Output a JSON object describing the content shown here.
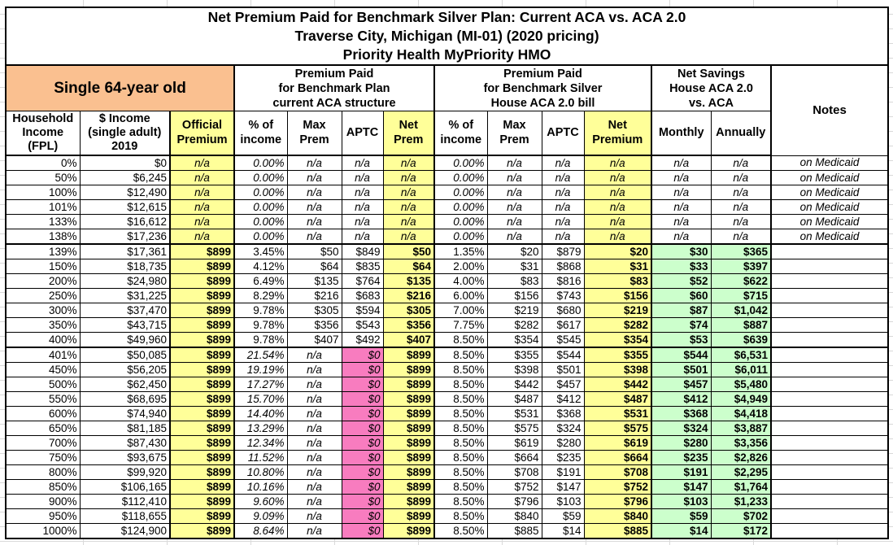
{
  "sheet": {
    "title_lines": [
      "Net Premium Paid for Benchmark Silver Plan: Current ACA vs. ACA 2.0",
      "Traverse City, Michigan (MI-01) (2020 pricing)",
      "Priority Health MyPriority HMO"
    ],
    "groups": {
      "subject": "Single 64-year old",
      "aca": "Premium Paid\nfor Benchmark Plan\ncurrent ACA structure",
      "house": "Premium Paid\nfor Benchmark Silver\nHouse ACA 2.0 bill",
      "savings": "Net Savings\nHouse ACA 2.0\nvs. ACA",
      "notes": "Notes"
    },
    "columns": [
      "Household\nIncome\n(FPL)",
      "$ Income\n(single adult)\n2019",
      "Official\nPremium",
      "% of\nincome",
      "Max\nPrem",
      "APTC",
      "Net\nPrem",
      "% of\nincome",
      "Max\nPrem",
      "APTC",
      "Net\nPremium",
      "Monthly",
      "Annually"
    ],
    "colors": {
      "subject_header": "#FAC090",
      "highlight": "#FFFF99",
      "savings": "#CCFFCC",
      "no_subsidy": "#F87CBF"
    },
    "rows": [
      [
        "0%",
        "$0",
        "n/a",
        "0.00%",
        "n/a",
        "n/a",
        "n/a",
        "0.00%",
        "n/a",
        "n/a",
        "n/a",
        "n/a",
        "n/a",
        "on Medicaid"
      ],
      [
        "50%",
        "$6,245",
        "n/a",
        "0.00%",
        "n/a",
        "n/a",
        "n/a",
        "0.00%",
        "n/a",
        "n/a",
        "n/a",
        "n/a",
        "n/a",
        "on Medicaid"
      ],
      [
        "100%",
        "$12,490",
        "n/a",
        "0.00%",
        "n/a",
        "n/a",
        "n/a",
        "0.00%",
        "n/a",
        "n/a",
        "n/a",
        "n/a",
        "n/a",
        "on Medicaid"
      ],
      [
        "101%",
        "$12,615",
        "n/a",
        "0.00%",
        "n/a",
        "n/a",
        "n/a",
        "0.00%",
        "n/a",
        "n/a",
        "n/a",
        "n/a",
        "n/a",
        "on Medicaid"
      ],
      [
        "133%",
        "$16,612",
        "n/a",
        "0.00%",
        "n/a",
        "n/a",
        "n/a",
        "0.00%",
        "n/a",
        "n/a",
        "n/a",
        "n/a",
        "n/a",
        "on Medicaid"
      ],
      [
        "138%",
        "$17,236",
        "n/a",
        "0.00%",
        "n/a",
        "n/a",
        "n/a",
        "0.00%",
        "n/a",
        "n/a",
        "n/a",
        "n/a",
        "n/a",
        "on Medicaid"
      ],
      [
        "139%",
        "$17,361",
        "$899",
        "3.45%",
        "$50",
        "$849",
        "$50",
        "1.35%",
        "$20",
        "$879",
        "$20",
        "$30",
        "$365",
        ""
      ],
      [
        "150%",
        "$18,735",
        "$899",
        "4.12%",
        "$64",
        "$835",
        "$64",
        "2.00%",
        "$31",
        "$868",
        "$31",
        "$33",
        "$397",
        ""
      ],
      [
        "200%",
        "$24,980",
        "$899",
        "6.49%",
        "$135",
        "$764",
        "$135",
        "4.00%",
        "$83",
        "$816",
        "$83",
        "$52",
        "$622",
        ""
      ],
      [
        "250%",
        "$31,225",
        "$899",
        "8.29%",
        "$216",
        "$683",
        "$216",
        "6.00%",
        "$156",
        "$743",
        "$156",
        "$60",
        "$715",
        ""
      ],
      [
        "300%",
        "$37,470",
        "$899",
        "9.78%",
        "$305",
        "$594",
        "$305",
        "7.00%",
        "$219",
        "$680",
        "$219",
        "$87",
        "$1,042",
        ""
      ],
      [
        "350%",
        "$43,715",
        "$899",
        "9.78%",
        "$356",
        "$543",
        "$356",
        "7.75%",
        "$282",
        "$617",
        "$282",
        "$74",
        "$887",
        ""
      ],
      [
        "400%",
        "$49,960",
        "$899",
        "9.78%",
        "$407",
        "$492",
        "$407",
        "8.50%",
        "$354",
        "$545",
        "$354",
        "$53",
        "$639",
        ""
      ],
      [
        "401%",
        "$50,085",
        "$899",
        "21.54%",
        "n/a",
        "$0",
        "$899",
        "8.50%",
        "$355",
        "$544",
        "$355",
        "$544",
        "$6,531",
        ""
      ],
      [
        "450%",
        "$56,205",
        "$899",
        "19.19%",
        "n/a",
        "$0",
        "$899",
        "8.50%",
        "$398",
        "$501",
        "$398",
        "$501",
        "$6,011",
        ""
      ],
      [
        "500%",
        "$62,450",
        "$899",
        "17.27%",
        "n/a",
        "$0",
        "$899",
        "8.50%",
        "$442",
        "$457",
        "$442",
        "$457",
        "$5,480",
        ""
      ],
      [
        "550%",
        "$68,695",
        "$899",
        "15.70%",
        "n/a",
        "$0",
        "$899",
        "8.50%",
        "$487",
        "$412",
        "$487",
        "$412",
        "$4,949",
        ""
      ],
      [
        "600%",
        "$74,940",
        "$899",
        "14.40%",
        "n/a",
        "$0",
        "$899",
        "8.50%",
        "$531",
        "$368",
        "$531",
        "$368",
        "$4,418",
        ""
      ],
      [
        "650%",
        "$81,185",
        "$899",
        "13.29%",
        "n/a",
        "$0",
        "$899",
        "8.50%",
        "$575",
        "$324",
        "$575",
        "$324",
        "$3,887",
        ""
      ],
      [
        "700%",
        "$87,430",
        "$899",
        "12.34%",
        "n/a",
        "$0",
        "$899",
        "8.50%",
        "$619",
        "$280",
        "$619",
        "$280",
        "$3,356",
        ""
      ],
      [
        "750%",
        "$93,675",
        "$899",
        "11.52%",
        "n/a",
        "$0",
        "$899",
        "8.50%",
        "$664",
        "$235",
        "$664",
        "$235",
        "$2,826",
        ""
      ],
      [
        "800%",
        "$99,920",
        "$899",
        "10.80%",
        "n/a",
        "$0",
        "$899",
        "8.50%",
        "$708",
        "$191",
        "$708",
        "$191",
        "$2,295",
        ""
      ],
      [
        "850%",
        "$106,165",
        "$899",
        "10.16%",
        "n/a",
        "$0",
        "$899",
        "8.50%",
        "$752",
        "$147",
        "$752",
        "$147",
        "$1,764",
        ""
      ],
      [
        "900%",
        "$112,410",
        "$899",
        "9.60%",
        "n/a",
        "$0",
        "$899",
        "8.50%",
        "$796",
        "$103",
        "$796",
        "$103",
        "$1,233",
        ""
      ],
      [
        "950%",
        "$118,655",
        "$899",
        "9.09%",
        "n/a",
        "$0",
        "$899",
        "8.50%",
        "$840",
        "$59",
        "$840",
        "$59",
        "$702",
        ""
      ],
      [
        "1000%",
        "$124,900",
        "$899",
        "8.64%",
        "n/a",
        "$0",
        "$899",
        "8.50%",
        "$885",
        "$14",
        "$885",
        "$14",
        "$172",
        ""
      ]
    ]
  }
}
